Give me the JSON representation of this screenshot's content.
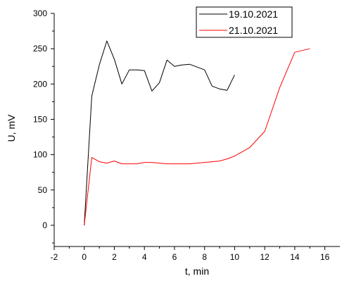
{
  "chart_data": {
    "type": "line",
    "xlabel": "t, min",
    "ylabel": "U, mV",
    "xlim": [
      -2,
      17
    ],
    "ylim": [
      -30,
      300
    ],
    "x_ticks": [
      -2,
      0,
      2,
      4,
      6,
      8,
      10,
      12,
      14,
      16
    ],
    "y_ticks": [
      0,
      50,
      100,
      150,
      200,
      250,
      300
    ],
    "grid": false,
    "legend_position": "top-right",
    "series": [
      {
        "name": "19.10.2021",
        "color": "#000000",
        "x": [
          0,
          0.5,
          1,
          1.5,
          2,
          2.5,
          3,
          3.5,
          4,
          4.5,
          5,
          5.5,
          6,
          6.5,
          7,
          7.5,
          8,
          8.5,
          9,
          9.5,
          10
        ],
        "y": [
          0,
          183,
          227,
          261,
          235,
          200,
          220,
          220,
          219,
          190,
          202,
          234,
          225,
          227,
          228,
          224,
          220,
          197,
          193,
          191,
          213
        ]
      },
      {
        "name": "21.10.2021",
        "color": "#ff0000",
        "x": [
          0,
          0.5,
          1,
          1.5,
          2,
          2.5,
          3,
          3.5,
          4,
          4.5,
          5,
          5.5,
          6,
          6.5,
          7,
          7.5,
          8,
          8.5,
          9,
          9.5,
          10,
          11,
          12,
          13,
          14,
          15
        ],
        "y": [
          0,
          96,
          90,
          88,
          91,
          87,
          87,
          87,
          89,
          89,
          88,
          87,
          87,
          87,
          87,
          88,
          89,
          90,
          91,
          94,
          98,
          110,
          133,
          195,
          245,
          250
        ]
      }
    ]
  }
}
